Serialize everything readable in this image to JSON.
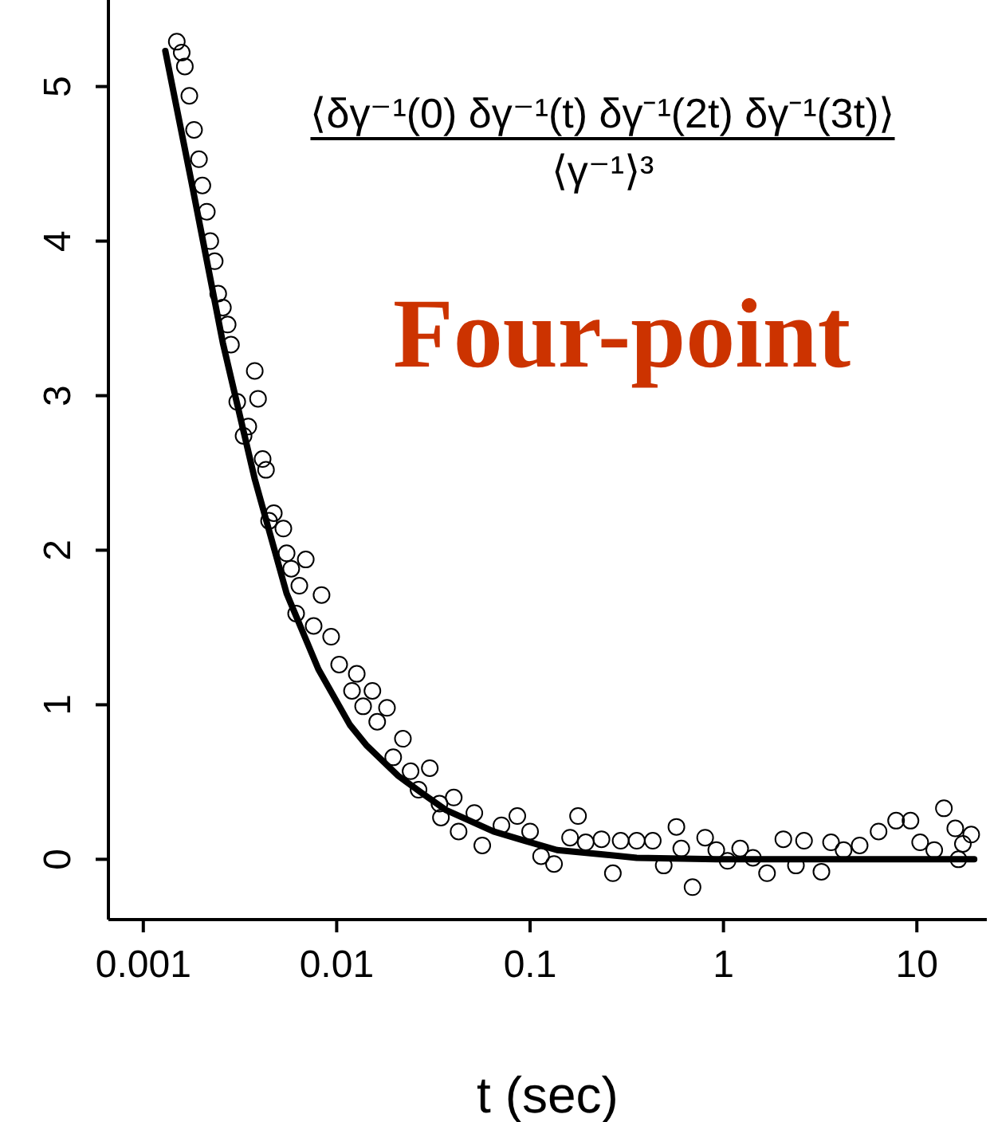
{
  "chart_data": {
    "type": "scatter",
    "xlabel": "t (sec)",
    "log": "x",
    "xlim": [
      0.00066,
      23
    ],
    "ylim": [
      -0.39,
      5.56
    ],
    "xticks": [
      0.001,
      0.01,
      0.1,
      1,
      10
    ],
    "yticks": [
      0,
      1,
      2,
      3,
      4,
      5
    ],
    "grid": false,
    "legend": false,
    "annotations": [
      "⟨δγ⁻¹(0) δγ⁻¹(t) δγ⁻¹(2t) δγ⁻¹(3t)⟩",
      "⟨γ⁻¹⟩³",
      "Four-point"
    ],
    "series": [
      {
        "marker": "circle",
        "color": "#000000",
        "x": [
          0.00149,
          0.00158,
          0.00164,
          0.00173,
          0.00183,
          0.00194,
          0.00202,
          0.00213,
          0.00222,
          0.00234,
          0.00244,
          0.00258,
          0.00273,
          0.00284,
          0.00377,
          0.00392,
          0.00306,
          0.00349,
          0.0033,
          0.00414,
          0.00431,
          0.00473,
          0.00447,
          0.0053,
          0.00551,
          0.00582,
          0.00641,
          0.00692,
          0.00617,
          0.00835,
          0.0076,
          0.00936,
          0.0103,
          0.0127,
          0.012,
          0.0153,
          0.0137,
          0.0182,
          0.0162,
          0.022,
          0.0196,
          0.0241,
          0.0303,
          0.0265,
          0.034,
          0.0403,
          0.0346,
          0.0515,
          0.0427,
          0.0566,
          0.0711,
          0.0859,
          0.1,
          0.114,
          0.133,
          0.161,
          0.177,
          0.194,
          0.234,
          0.268,
          0.294,
          0.356,
          0.431,
          0.491,
          0.571,
          0.605,
          0.692,
          0.804,
          0.918,
          1.05,
          1.22,
          1.42,
          1.68,
          2.04,
          2.37,
          2.61,
          3.21,
          3.6,
          4.18,
          5.06,
          6.34,
          7.81,
          9.27,
          10.4,
          12.3,
          13.8,
          15.8,
          17.3,
          19.1,
          16.4
        ],
        "values": [
          5.29,
          5.22,
          5.13,
          4.94,
          4.72,
          4.53,
          4.36,
          4.19,
          4.0,
          3.87,
          3.66,
          3.57,
          3.46,
          3.33,
          3.16,
          2.98,
          2.96,
          2.8,
          2.74,
          2.59,
          2.52,
          2.24,
          2.19,
          2.14,
          1.98,
          1.88,
          1.77,
          1.94,
          1.59,
          1.71,
          1.51,
          1.44,
          1.26,
          1.2,
          1.09,
          1.09,
          0.99,
          0.98,
          0.89,
          0.78,
          0.66,
          0.57,
          0.59,
          0.45,
          0.36,
          0.4,
          0.27,
          0.3,
          0.18,
          0.09,
          0.22,
          0.28,
          0.18,
          0.02,
          -0.03,
          0.14,
          0.28,
          0.11,
          0.13,
          -0.09,
          0.12,
          0.12,
          0.12,
          -0.04,
          0.21,
          0.07,
          -0.18,
          0.14,
          0.06,
          -0.01,
          0.07,
          0.01,
          -0.09,
          0.13,
          -0.04,
          0.12,
          -0.08,
          0.11,
          0.06,
          0.09,
          0.18,
          0.25,
          0.25,
          0.11,
          0.06,
          0.33,
          0.2,
          0.1,
          0.16,
          0.0
        ]
      },
      {
        "type": "line",
        "marker": "none",
        "color": "#000000",
        "x": [
          0.0013,
          0.00177,
          0.00258,
          0.00377,
          0.00551,
          0.00804,
          0.0117,
          0.0142,
          0.0208,
          0.0275,
          0.0366,
          0.0647,
          0.094,
          0.138,
          0.244,
          0.356,
          0.918,
          19.8
        ],
        "values": [
          5.23,
          4.39,
          3.34,
          2.46,
          1.72,
          1.23,
          0.87,
          0.74,
          0.54,
          0.43,
          0.32,
          0.18,
          0.12,
          0.06,
          0.03,
          0.01,
          0,
          0
        ]
      }
    ]
  }
}
